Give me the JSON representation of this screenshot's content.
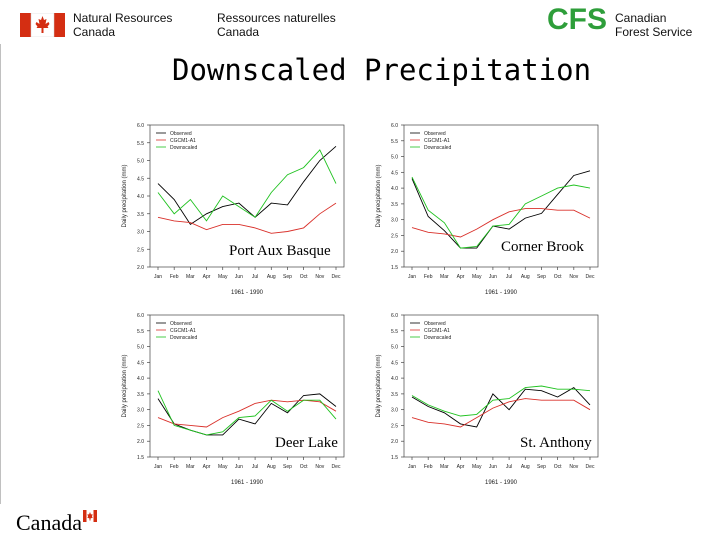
{
  "header": {
    "nrcan_en_line1": "Natural Resources",
    "nrcan_en_line2": "Canada",
    "nrcan_fr_line1": "Ressources naturelles",
    "nrcan_fr_line2": "Canada",
    "cfs_logo": "CFS",
    "cfs_line1": "Canadian",
    "cfs_line2": "Forest Service",
    "flag_color": "#d42e12"
  },
  "title": "Downscaled Precipitation",
  "footer": {
    "wordmark": "Canada"
  },
  "chart_data": [
    {
      "type": "line",
      "place": "Port Aux Basque",
      "xlabel": "1961 - 1990",
      "ylabel": "Daily precipitation (mm)",
      "ylim": [
        2.0,
        6.0
      ],
      "yticks": [
        "2.0",
        "2.5",
        "3.0",
        "3.5",
        "4.0",
        "4.5",
        "5.0",
        "5.5",
        "6.0"
      ],
      "categories": [
        "Jan",
        "Feb",
        "Mar",
        "Apr",
        "May",
        "Jun",
        "Jul",
        "Aug",
        "Sep",
        "Oct",
        "Nov",
        "Dec"
      ],
      "legend": [
        "Observed",
        "CGCM1-A1",
        "Downscaled"
      ],
      "series": [
        {
          "name": "Observed",
          "color": "#000000",
          "values": [
            4.35,
            3.9,
            3.2,
            3.5,
            3.7,
            3.8,
            3.4,
            3.8,
            3.75,
            4.4,
            5.0,
            5.4
          ]
        },
        {
          "name": "CGCM1-A1",
          "color": "#d9302a",
          "values": [
            3.4,
            3.3,
            3.25,
            3.05,
            3.2,
            3.2,
            3.1,
            2.95,
            3.0,
            3.1,
            3.5,
            3.8
          ]
        },
        {
          "name": "Downscaled",
          "color": "#1fc21f",
          "values": [
            4.1,
            3.5,
            3.9,
            3.3,
            4.0,
            3.7,
            3.4,
            4.1,
            4.6,
            4.8,
            5.3,
            4.35
          ]
        }
      ]
    },
    {
      "type": "line",
      "place": "Corner Brook",
      "xlabel": "1961 - 1990",
      "ylabel": "Daily precipitation (mm)",
      "ylim": [
        1.5,
        6.0
      ],
      "yticks": [
        "1.5",
        "2.0",
        "2.5",
        "3.0",
        "3.5",
        "4.0",
        "4.5",
        "5.0",
        "5.5",
        "6.0"
      ],
      "categories": [
        "Jan",
        "Feb",
        "Mar",
        "Apr",
        "May",
        "Jun",
        "Jul",
        "Aug",
        "Sep",
        "Oct",
        "Nov",
        "Dec"
      ],
      "legend": [
        "Observed",
        "CGCM1-A1",
        "Downscaled"
      ],
      "series": [
        {
          "name": "Observed",
          "color": "#000000",
          "values": [
            4.3,
            3.1,
            2.65,
            2.1,
            2.1,
            2.8,
            2.7,
            3.05,
            3.2,
            3.8,
            4.4,
            4.55
          ]
        },
        {
          "name": "CGCM1-A1",
          "color": "#d9302a",
          "values": [
            2.75,
            2.6,
            2.55,
            2.45,
            2.7,
            3.0,
            3.25,
            3.35,
            3.35,
            3.3,
            3.3,
            3.05
          ]
        },
        {
          "name": "Downscaled",
          "color": "#1fc21f",
          "values": [
            4.35,
            3.3,
            2.9,
            2.1,
            2.15,
            2.8,
            2.85,
            3.5,
            3.75,
            4.0,
            4.1,
            4.0
          ]
        }
      ]
    },
    {
      "type": "line",
      "place": "Deer Lake",
      "xlabel": "1961 - 1990",
      "ylabel": "Daily precipitation (mm)",
      "ylim": [
        1.5,
        6.0
      ],
      "yticks": [
        "1.5",
        "2.0",
        "2.5",
        "3.0",
        "3.5",
        "4.0",
        "4.5",
        "5.0",
        "5.5",
        "6.0"
      ],
      "categories": [
        "Jan",
        "Feb",
        "Mar",
        "Apr",
        "May",
        "Jun",
        "Jul",
        "Aug",
        "Sep",
        "Oct",
        "Nov",
        "Dec"
      ],
      "legend": [
        "Observed",
        "CGCM1-A1",
        "Downscaled"
      ],
      "series": [
        {
          "name": "Observed",
          "color": "#000000",
          "values": [
            3.35,
            2.55,
            2.35,
            2.2,
            2.2,
            2.7,
            2.55,
            3.2,
            2.9,
            3.45,
            3.5,
            3.1
          ]
        },
        {
          "name": "CGCM1-A1",
          "color": "#d9302a",
          "values": [
            2.75,
            2.55,
            2.5,
            2.45,
            2.75,
            2.95,
            3.2,
            3.3,
            3.25,
            3.3,
            3.25,
            2.95
          ]
        },
        {
          "name": "Downscaled",
          "color": "#1fc21f",
          "values": [
            3.6,
            2.5,
            2.35,
            2.2,
            2.3,
            2.75,
            2.8,
            3.3,
            2.95,
            3.3,
            3.3,
            2.7
          ]
        }
      ]
    },
    {
      "type": "line",
      "place": "St. Anthony",
      "xlabel": "1961 - 1990",
      "ylabel": "Daily precipitation (mm)",
      "ylim": [
        1.5,
        6.0
      ],
      "yticks": [
        "1.5",
        "2.0",
        "2.5",
        "3.0",
        "3.5",
        "4.0",
        "4.5",
        "5.0",
        "5.5",
        "6.0"
      ],
      "categories": [
        "Jan",
        "Feb",
        "Mar",
        "Apr",
        "May",
        "Jun",
        "Jul",
        "Aug",
        "Sep",
        "Oct",
        "Nov",
        "Dec"
      ],
      "legend": [
        "Observed",
        "CGCM1-A1",
        "Downscaled"
      ],
      "series": [
        {
          "name": "Observed",
          "color": "#000000",
          "values": [
            3.4,
            3.1,
            2.9,
            2.55,
            2.45,
            3.5,
            3.0,
            3.65,
            3.6,
            3.4,
            3.7,
            3.15
          ]
        },
        {
          "name": "CGCM1-A1",
          "color": "#d9302a",
          "values": [
            2.75,
            2.6,
            2.55,
            2.45,
            2.75,
            3.05,
            3.25,
            3.35,
            3.3,
            3.3,
            3.3,
            3.0
          ]
        },
        {
          "name": "Downscaled",
          "color": "#1fc21f",
          "values": [
            3.45,
            3.15,
            2.95,
            2.8,
            2.85,
            3.3,
            3.35,
            3.7,
            3.75,
            3.65,
            3.65,
            3.6
          ]
        }
      ]
    }
  ]
}
